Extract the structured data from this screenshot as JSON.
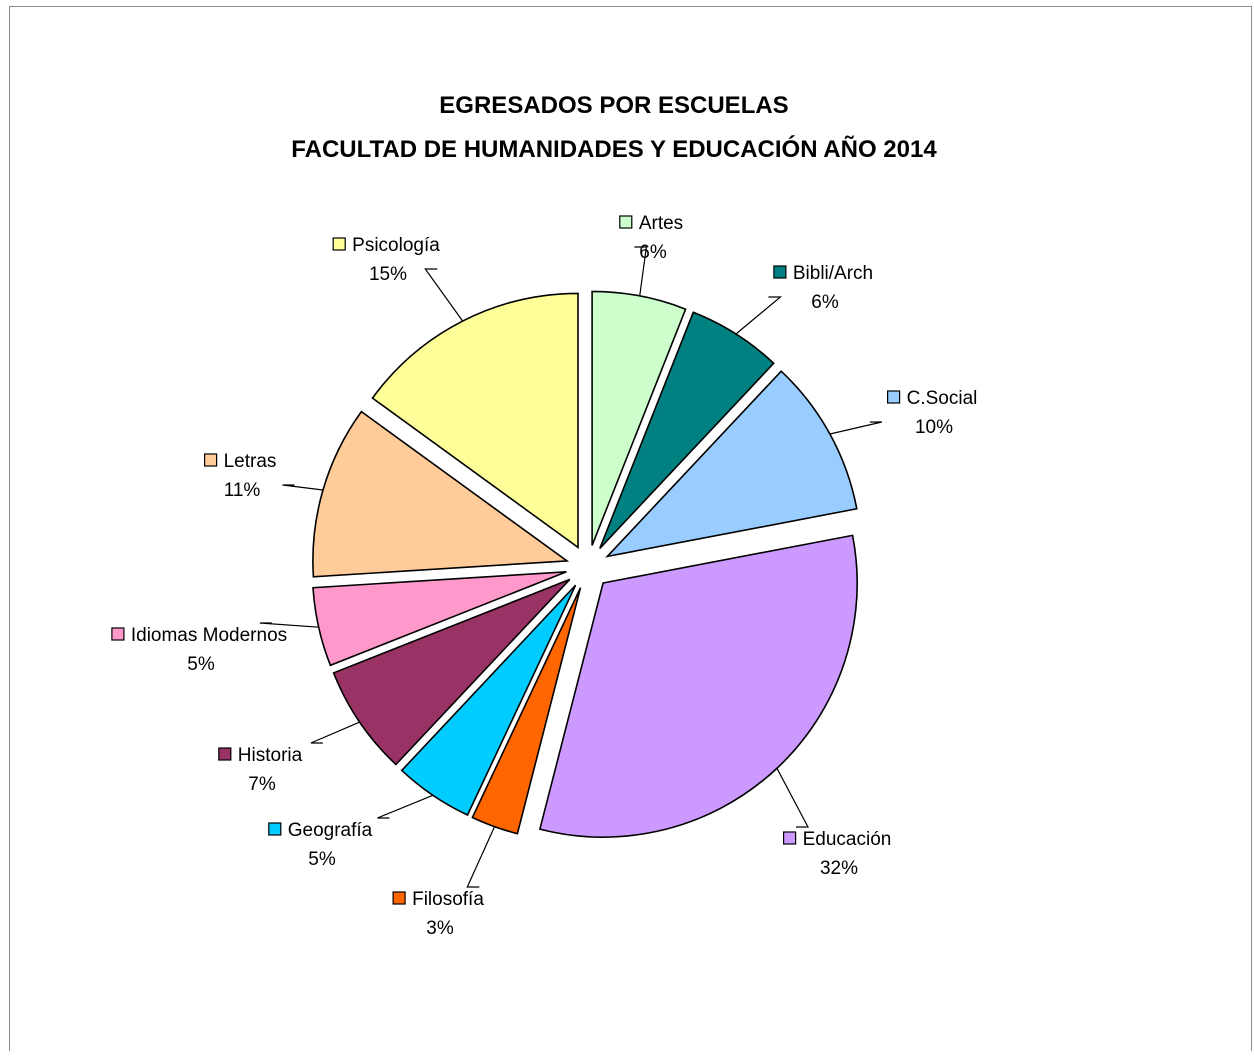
{
  "chart_data": {
    "type": "pie",
    "exploded": true,
    "title": [
      "EGRESADOS POR ESCUELAS",
      "FACULTAD DE HUMANIDADES Y EDUCACIÓN AÑO 2014"
    ],
    "legend_style": "data labels with color key beside each slice",
    "slices": [
      {
        "label": "Artes",
        "percent": 6,
        "percent_label": "6%",
        "color": "#CCFFCC"
      },
      {
        "label": "Bibli/Arch",
        "percent": 6,
        "percent_label": "6%",
        "color": "#008080"
      },
      {
        "label": "C.Social",
        "percent": 10,
        "percent_label": "10%",
        "color": "#99CCFF"
      },
      {
        "label": "Educación",
        "percent": 32,
        "percent_label": "32%",
        "color": "#CC99FF"
      },
      {
        "label": "Filosofía",
        "percent": 3,
        "percent_label": "3%",
        "color": "#FF6600"
      },
      {
        "label": "Geografía",
        "percent": 5,
        "percent_label": "5%",
        "color": "#00CCFF"
      },
      {
        "label": "Historia",
        "percent": 7,
        "percent_label": "7%",
        "color": "#993366"
      },
      {
        "label": "Idiomas Modernos",
        "percent": 5,
        "percent_label": "5%",
        "color": "#FF99CC"
      },
      {
        "label": "Letras",
        "percent": 11,
        "percent_label": "11%",
        "color": "#FFCC99"
      },
      {
        "label": "Psicología",
        "percent": 15,
        "percent_label": "15%",
        "color": "#FFFF99"
      }
    ]
  }
}
